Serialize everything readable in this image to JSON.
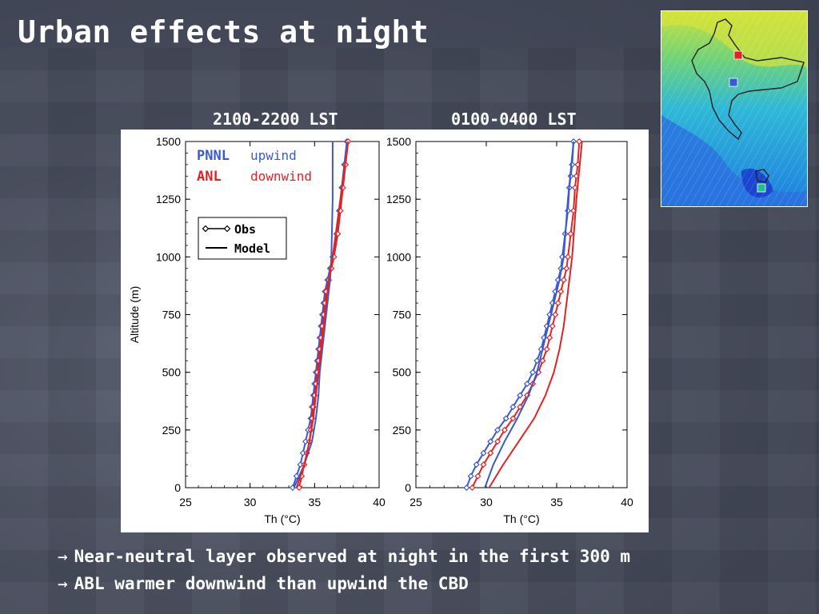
{
  "slide": {
    "title": "Urban effects at night",
    "bullets": [
      {
        "arrow": "→",
        "text": "Near-neutral layer observed at night in the first 300 m"
      },
      {
        "arrow": "→",
        "text": "ABL warmer downwind than upwind the CBD"
      }
    ]
  },
  "colors": {
    "upwind": "#3a5bd0",
    "downwind": "#e02424",
    "text_white": "#ffffff"
  },
  "legend_text": {
    "pnnl": "PNNL",
    "upwind": "upwind",
    "anl": "ANL",
    "downwind": "downwind",
    "obs": "Obs",
    "model": "Model"
  },
  "chart_data": [
    {
      "type": "line",
      "title": "2100-2200 LST",
      "xlabel": "Th (°C)",
      "ylabel": "Altitude (m)",
      "xlim": [
        25,
        40
      ],
      "ylim": [
        0,
        1500
      ],
      "xticks": [
        "25",
        "30",
        "35",
        "40"
      ],
      "yticks": [
        "0",
        "250",
        "500",
        "750",
        "1000",
        "1250",
        "1500"
      ],
      "series": [
        {
          "name": "upwind",
          "kind": "obs",
          "color": "#3a5bd0",
          "x": [
            33.3,
            33.6,
            33.9,
            34.1,
            34.3,
            34.5,
            34.7,
            34.8,
            34.9,
            35.0,
            35.1,
            35.2,
            35.3,
            35.4,
            35.5,
            35.6,
            35.7,
            35.8,
            36.0,
            36.2,
            36.4,
            36.7,
            36.9,
            37.1,
            37.3,
            37.5
          ],
          "y": [
            0,
            50,
            100,
            150,
            200,
            250,
            300,
            350,
            400,
            450,
            500,
            550,
            600,
            650,
            700,
            750,
            800,
            850,
            900,
            950,
            1000,
            1100,
            1200,
            1300,
            1400,
            1500
          ]
        },
        {
          "name": "downwind",
          "kind": "obs",
          "color": "#e02424",
          "x": [
            33.8,
            34.0,
            34.2,
            34.4,
            34.6,
            34.7,
            34.8,
            34.9,
            35.0,
            35.1,
            35.2,
            35.3,
            35.4,
            35.5,
            35.6,
            35.7,
            35.8,
            35.9,
            36.1,
            36.3,
            36.5,
            36.8,
            37.0,
            37.2,
            37.4,
            37.6
          ],
          "y": [
            0,
            50,
            100,
            150,
            200,
            250,
            300,
            350,
            400,
            450,
            500,
            550,
            600,
            650,
            700,
            750,
            800,
            850,
            900,
            950,
            1000,
            1100,
            1200,
            1300,
            1400,
            1500
          ]
        },
        {
          "name": "upwind",
          "kind": "model",
          "color": "#3a5bd0",
          "x": [
            33.4,
            34.2,
            34.8,
            35.1,
            35.3,
            35.4,
            35.6,
            35.8,
            36.0,
            36.2,
            36.3,
            36.4,
            36.4
          ],
          "y": [
            0,
            100,
            200,
            300,
            400,
            500,
            600,
            700,
            800,
            900,
            1000,
            1250,
            1500
          ]
        },
        {
          "name": "downwind",
          "kind": "model",
          "color": "#e02424",
          "x": [
            33.6,
            34.2,
            34.6,
            34.9,
            35.1,
            35.3,
            35.5,
            35.7,
            35.9,
            36.1,
            36.4,
            37.0,
            37.6
          ],
          "y": [
            0,
            100,
            200,
            300,
            400,
            500,
            600,
            700,
            800,
            900,
            1000,
            1250,
            1500
          ]
        }
      ]
    },
    {
      "type": "line",
      "title": "0100-0400 LST",
      "xlabel": "Th (°C)",
      "ylabel": "",
      "xlim": [
        25,
        40
      ],
      "ylim": [
        0,
        1500
      ],
      "xticks": [
        "25",
        "30",
        "35",
        "40"
      ],
      "yticks": [
        "0",
        "250",
        "500",
        "750",
        "1000",
        "1250",
        "1500"
      ],
      "series": [
        {
          "name": "upwind",
          "kind": "obs",
          "color": "#3a5bd0",
          "x": [
            28.6,
            28.9,
            29.3,
            29.8,
            30.3,
            30.8,
            31.4,
            31.9,
            32.4,
            32.9,
            33.3,
            33.6,
            33.9,
            34.1,
            34.3,
            34.5,
            34.7,
            34.9,
            35.1,
            35.3,
            35.4,
            35.6,
            35.8,
            35.9,
            36.0,
            36.1,
            36.2
          ],
          "y": [
            0,
            50,
            100,
            150,
            200,
            250,
            300,
            350,
            400,
            450,
            500,
            550,
            600,
            650,
            700,
            750,
            800,
            850,
            900,
            950,
            1000,
            1100,
            1200,
            1300,
            1350,
            1400,
            1500
          ]
        },
        {
          "name": "downwind",
          "kind": "obs",
          "color": "#e02424",
          "x": [
            29.0,
            29.4,
            29.8,
            30.3,
            30.8,
            31.3,
            31.9,
            32.4,
            32.9,
            33.3,
            33.7,
            34.0,
            34.3,
            34.5,
            34.7,
            34.9,
            35.1,
            35.3,
            35.5,
            35.7,
            35.8,
            36.0,
            36.2,
            36.3,
            36.4,
            36.5,
            36.6
          ],
          "y": [
            0,
            50,
            100,
            150,
            200,
            250,
            300,
            350,
            400,
            450,
            500,
            550,
            600,
            650,
            700,
            750,
            800,
            850,
            900,
            950,
            1000,
            1100,
            1200,
            1300,
            1350,
            1400,
            1500
          ]
        },
        {
          "name": "upwind",
          "kind": "model",
          "color": "#3a5bd0",
          "x": [
            29.9,
            30.5,
            31.3,
            32.2,
            33.0,
            33.6,
            34.0,
            34.4,
            34.8,
            35.2,
            35.5,
            35.8,
            36.2
          ],
          "y": [
            0,
            100,
            200,
            300,
            400,
            500,
            600,
            700,
            800,
            900,
            1000,
            1250,
            1500
          ]
        },
        {
          "name": "downwind",
          "kind": "model",
          "color": "#e02424",
          "x": [
            30.2,
            31.2,
            32.3,
            33.4,
            34.2,
            34.8,
            35.2,
            35.5,
            35.7,
            35.9,
            36.1,
            36.4,
            36.8
          ],
          "y": [
            0,
            100,
            200,
            300,
            400,
            500,
            600,
            700,
            800,
            900,
            1000,
            1250,
            1500
          ]
        }
      ]
    }
  ]
}
